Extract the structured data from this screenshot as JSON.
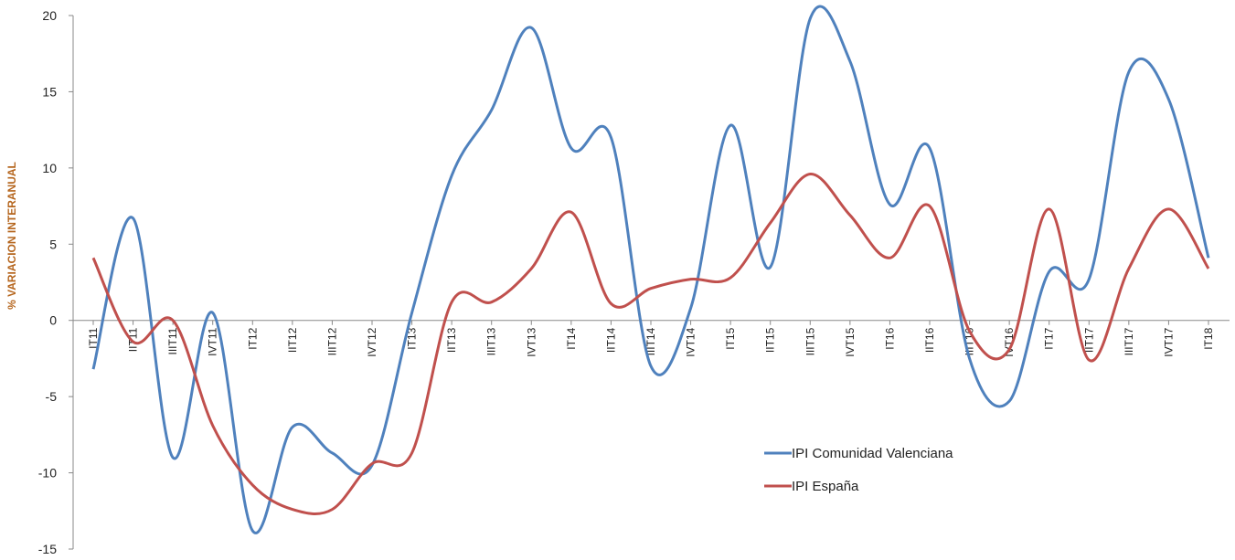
{
  "chart_data": {
    "type": "line",
    "title": "",
    "xlabel": "",
    "ylabel": "% VARIACION INTERANUAL",
    "ylim": [
      -15,
      20
    ],
    "yticks": [
      -15,
      -10,
      -5,
      0,
      5,
      10,
      15,
      20
    ],
    "grid": false,
    "legend_position": "bottom-right",
    "categories": [
      "IT11",
      "IIT11",
      "IIIT11",
      "IVT11",
      "IT12",
      "IIT12",
      "IIIT12",
      "IVT12",
      "IT13",
      "IIT13",
      "IIIT13",
      "IVT13",
      "IT14",
      "IIT14",
      "IIIT14",
      "IVT14",
      "IT15",
      "IIT15",
      "IIIT15",
      "IVT15",
      "IT16",
      "IIT16",
      "IIIT16",
      "IVT16",
      "IT17",
      "IIT17",
      "IIIT17",
      "IVT17",
      "IT18"
    ],
    "series": [
      {
        "name": "IPI Comunidad Valenciana",
        "color": "#4f81bd",
        "values": [
          -3.2,
          6.7,
          -9.0,
          0.5,
          -13.8,
          -7.0,
          -8.7,
          -9.5,
          0.5,
          9.5,
          13.8,
          19.2,
          11.3,
          12.0,
          -3.0,
          0.8,
          12.8,
          3.5,
          19.8,
          17.0,
          7.6,
          11.3,
          -2.5,
          -5.3,
          3.2,
          2.7,
          16.3,
          14.5,
          4.1
        ]
      },
      {
        "name": "IPI España",
        "color": "#c0504d",
        "values": [
          4.1,
          -1.4,
          0.0,
          -6.9,
          -10.8,
          -12.4,
          -12.4,
          -9.4,
          -8.7,
          1.2,
          1.2,
          3.4,
          7.1,
          1.1,
          2.1,
          2.7,
          2.8,
          6.4,
          9.6,
          6.9,
          4.1,
          7.5,
          -0.7,
          -1.9,
          7.3,
          -2.6,
          3.4,
          7.3,
          3.4
        ]
      }
    ]
  }
}
